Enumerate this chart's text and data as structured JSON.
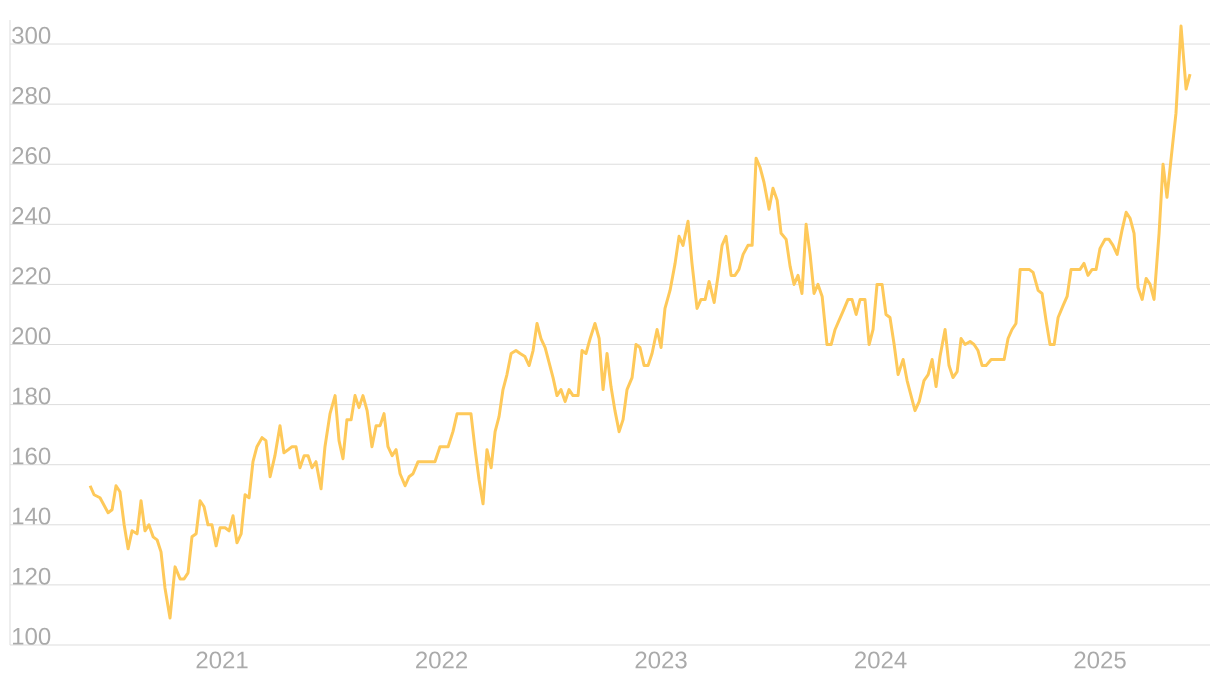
{
  "chart_data": {
    "type": "line",
    "color": "#fec95a",
    "grid": "y",
    "xlim": [
      2020.034,
      2025.501
    ],
    "ylim": [
      100,
      308
    ],
    "xticks": [
      2021,
      2022,
      2023,
      2024,
      2025
    ],
    "yticks": [
      100,
      120,
      140,
      160,
      180,
      200,
      220,
      240,
      260,
      280,
      300
    ],
    "x": [
      2020.399,
      2020.417,
      2020.444,
      2020.481,
      2020.499,
      2020.517,
      2020.535,
      2020.554,
      2020.572,
      2020.59,
      2020.613,
      2020.631,
      2020.649,
      2020.667,
      2020.686,
      2020.704,
      2020.722,
      2020.74,
      2020.763,
      2020.786,
      2020.809,
      2020.827,
      2020.845,
      2020.863,
      2020.882,
      2020.9,
      2020.918,
      2020.936,
      2020.954,
      2020.973,
      2020.991,
      2021.014,
      2021.032,
      2021.05,
      2021.068,
      2021.087,
      2021.105,
      2021.123,
      2021.141,
      2021.159,
      2021.182,
      2021.2,
      2021.219,
      2021.241,
      2021.264,
      2021.282,
      2021.301,
      2021.319,
      2021.337,
      2021.355,
      2021.374,
      2021.392,
      2021.41,
      2021.428,
      2021.451,
      2021.469,
      2021.492,
      2021.515,
      2021.533,
      2021.551,
      2021.569,
      2021.588,
      2021.606,
      2021.624,
      2021.642,
      2021.661,
      2021.683,
      2021.702,
      2021.72,
      2021.738,
      2021.756,
      2021.775,
      2021.793,
      2021.811,
      2021.834,
      2021.852,
      2021.87,
      2021.893,
      2021.911,
      2021.948,
      2021.97,
      2021.993,
      2022.03,
      2022.052,
      2022.071,
      2022.112,
      2022.134,
      2022.153,
      2022.171,
      2022.189,
      2022.207,
      2022.226,
      2022.244,
      2022.262,
      2022.28,
      2022.298,
      2022.317,
      2022.339,
      2022.358,
      2022.38,
      2022.399,
      2022.417,
      2022.435,
      2022.453,
      2022.472,
      2022.49,
      2022.508,
      2022.526,
      2022.544,
      2022.563,
      2022.581,
      2022.599,
      2022.622,
      2022.64,
      2022.658,
      2022.677,
      2022.699,
      2022.718,
      2022.736,
      2022.754,
      2022.772,
      2022.79,
      2022.809,
      2022.827,
      2022.845,
      2022.868,
      2022.886,
      2022.904,
      2022.923,
      2022.941,
      2022.959,
      2022.982,
      2023.0,
      2023.018,
      2023.041,
      2023.064,
      2023.082,
      2023.1,
      2023.123,
      2023.141,
      2023.164,
      2023.182,
      2023.201,
      2023.219,
      2023.242,
      2023.26,
      2023.278,
      2023.296,
      2023.319,
      2023.337,
      2023.355,
      2023.374,
      2023.396,
      2023.415,
      2023.433,
      2023.451,
      2023.469,
      2023.492,
      2023.51,
      2023.529,
      2023.547,
      2023.57,
      2023.588,
      2023.606,
      2023.624,
      2023.642,
      2023.661,
      2023.679,
      2023.697,
      2023.715,
      2023.734,
      2023.756,
      2023.775,
      2023.793,
      2023.811,
      2023.829,
      2023.852,
      2023.87,
      2023.889,
      2023.907,
      2023.929,
      2023.948,
      2023.966,
      2023.984,
      2024.007,
      2024.025,
      2024.043,
      2024.062,
      2024.08,
      2024.103,
      2024.121,
      2024.139,
      2024.157,
      2024.176,
      2024.198,
      2024.217,
      2024.235,
      2024.253,
      2024.271,
      2024.294,
      2024.312,
      2024.33,
      2024.349,
      2024.367,
      2024.385,
      2024.408,
      2024.426,
      2024.444,
      2024.463,
      2024.481,
      2024.504,
      2024.563,
      2024.581,
      2024.599,
      2024.617,
      2024.636,
      2024.677,
      2024.695,
      2024.718,
      2024.736,
      2024.754,
      2024.772,
      2024.791,
      2024.809,
      2024.832,
      2024.85,
      2024.868,
      2024.909,
      2024.927,
      2024.945,
      2024.964,
      2024.982,
      2025.0,
      2025.023,
      2025.041,
      2025.059,
      2025.078,
      2025.1,
      2025.119,
      2025.137,
      2025.155,
      2025.173,
      2025.192,
      2025.21,
      2025.228,
      2025.246,
      2025.269,
      2025.287,
      2025.305,
      2025.324,
      2025.346,
      2025.369,
      2025.392,
      2025.41
    ],
    "values": [
      153,
      150,
      149,
      144,
      145,
      153,
      151,
      140,
      132,
      138,
      137,
      148,
      138,
      140,
      136,
      135,
      131,
      119,
      109,
      126,
      122,
      122,
      124,
      136,
      137,
      148,
      146,
      140,
      140,
      133,
      139,
      139,
      138,
      143,
      134,
      137,
      150,
      149,
      161,
      166,
      169,
      168,
      156,
      163,
      173,
      164,
      165,
      166,
      166,
      159,
      163,
      163,
      159,
      161,
      152,
      166,
      177,
      183,
      168,
      162,
      175,
      175,
      183,
      179,
      183,
      178,
      166,
      173,
      173,
      177,
      166,
      163,
      165,
      157,
      153,
      156,
      157,
      161,
      161,
      161,
      161,
      166,
      166,
      171,
      177,
      177,
      177,
      165,
      155,
      147,
      165,
      159,
      171,
      176,
      185,
      190,
      197,
      198,
      197,
      196,
      193,
      198,
      207,
      202,
      199,
      194,
      189,
      183,
      185,
      181,
      185,
      183,
      183,
      198,
      197,
      202,
      207,
      202,
      185,
      197,
      186,
      178,
      171,
      175,
      185,
      189,
      200,
      199,
      193,
      193,
      197,
      205,
      199,
      212,
      218,
      227,
      236,
      233,
      241,
      227,
      212,
      215,
      215,
      221,
      214,
      223,
      233,
      236,
      223,
      223,
      225,
      230,
      233,
      233,
      262,
      259,
      254,
      245,
      252,
      248,
      237,
      235,
      226,
      220,
      223,
      217,
      240,
      230,
      217,
      220,
      216,
      200,
      200,
      205,
      208,
      211,
      215,
      215,
      210,
      215,
      215,
      200,
      205,
      220,
      220,
      210,
      209,
      200,
      190,
      195,
      188,
      183,
      178,
      181,
      188,
      190,
      195,
      186,
      196,
      205,
      193,
      189,
      191,
      202,
      200,
      201,
      200,
      198,
      193,
      193,
      195,
      195,
      202,
      205,
      207,
      225,
      225,
      224,
      218,
      217,
      208,
      200,
      200,
      209,
      213,
      216,
      225,
      225,
      227,
      223,
      225,
      225,
      232,
      235,
      235,
      233,
      230,
      238,
      244,
      242,
      237,
      219,
      215,
      222,
      220,
      215,
      237,
      260,
      249,
      262,
      277,
      306,
      285,
      290
    ]
  }
}
